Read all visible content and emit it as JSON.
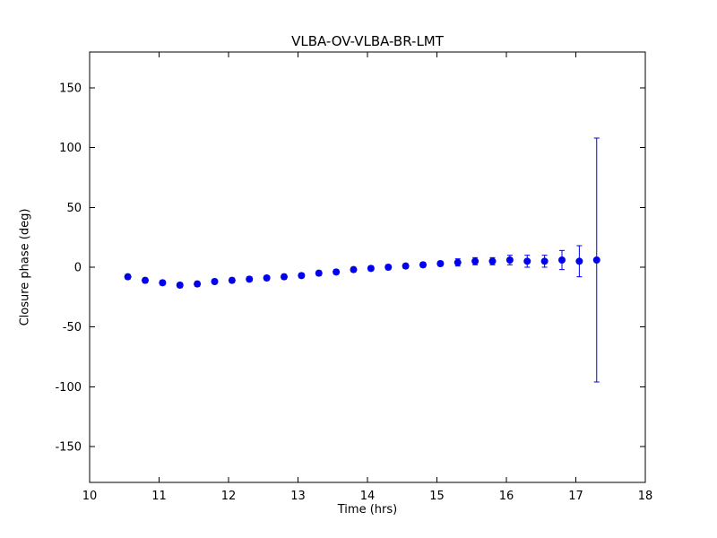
{
  "chart_data": {
    "type": "scatter",
    "title": "VLBA-OV-VLBA-BR-LMT",
    "xlabel": "Time (hrs)",
    "ylabel": "Closure phase (deg)",
    "xlim": [
      10,
      18
    ],
    "ylim": [
      -180,
      180
    ],
    "xticks": [
      10,
      11,
      12,
      13,
      14,
      15,
      16,
      17,
      18
    ],
    "yticks": [
      -150,
      -100,
      -50,
      0,
      50,
      100,
      150
    ],
    "marker_color": "#0000ee",
    "axis_color": "#000000",
    "background_color": "#ffffff",
    "legend": null,
    "grid": false,
    "x": [
      10.55,
      10.8,
      11.05,
      11.3,
      11.55,
      11.8,
      12.05,
      12.3,
      12.55,
      12.8,
      13.05,
      13.3,
      13.55,
      13.8,
      14.05,
      14.3,
      14.55,
      14.8,
      15.05,
      15.3,
      15.55,
      15.8,
      16.05,
      16.3,
      16.55,
      16.8,
      17.05,
      17.3
    ],
    "y": [
      -8,
      -11,
      -13,
      -15,
      -14,
      -12,
      -11,
      -10,
      -9,
      -8,
      -7,
      -5,
      -4,
      -2,
      -1,
      0,
      1,
      2,
      3,
      4,
      5,
      5,
      6,
      5,
      5,
      6,
      5,
      6
    ],
    "yerr": [
      2,
      2,
      2,
      2,
      2,
      2,
      2,
      2,
      2,
      2,
      2,
      2,
      2,
      2,
      2,
      2,
      2,
      2,
      2,
      3,
      3,
      3,
      4,
      5,
      5,
      8,
      13,
      102
    ]
  }
}
